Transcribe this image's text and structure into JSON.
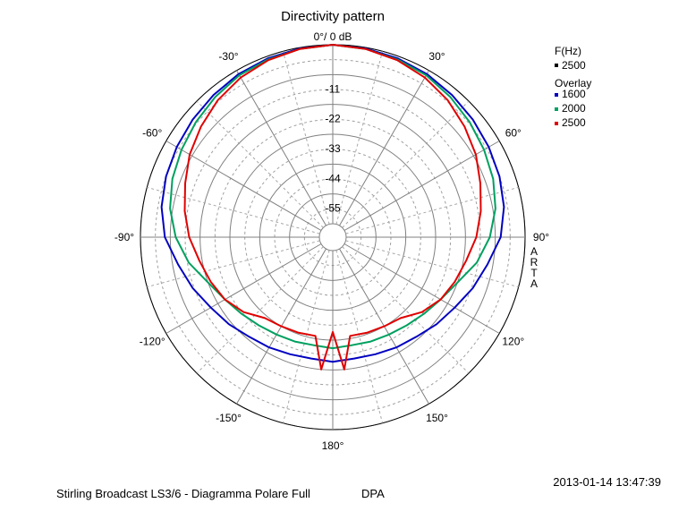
{
  "chart_data": {
    "type": "polar-line",
    "title": "Directivity pattern",
    "top_label": "0°/ 0 dB",
    "radial_unit": "dB",
    "radial_ticks": [
      {
        "value": 0,
        "label": ""
      },
      {
        "value": -11,
        "label": "-11"
      },
      {
        "value": -22,
        "label": "-22"
      },
      {
        "value": -33,
        "label": "-33"
      },
      {
        "value": -44,
        "label": "-44"
      },
      {
        "value": -55,
        "label": "-55"
      }
    ],
    "radial_range": [
      -66,
      0
    ],
    "angle_labels": [
      {
        "angle": 30,
        "label": "30°"
      },
      {
        "angle": 60,
        "label": "60°"
      },
      {
        "angle": 90,
        "label": "90°"
      },
      {
        "angle": 120,
        "label": "120°"
      },
      {
        "angle": 150,
        "label": "150°"
      },
      {
        "angle": 180,
        "label": "180°"
      },
      {
        "angle": -150,
        "label": "-150°"
      },
      {
        "angle": -120,
        "label": "-120°"
      },
      {
        "angle": -90,
        "label": "-90°"
      },
      {
        "angle": -60,
        "label": "-60°"
      },
      {
        "angle": -30,
        "label": "-30°"
      }
    ],
    "legend": {
      "header1": "F(Hz)",
      "main_entry": {
        "name": "2500",
        "color": "#000000"
      },
      "header2": "Overlay",
      "entries": [
        {
          "name": "1600",
          "color": "#0000c0"
        },
        {
          "name": "2000",
          "color": "#00a060"
        },
        {
          "name": "2500",
          "color": "#e00000"
        }
      ]
    },
    "series": [
      {
        "name": "1600",
        "color": "#0000c0",
        "angles": [
          0,
          10,
          20,
          30,
          40,
          50,
          60,
          70,
          80,
          90,
          100,
          110,
          120,
          130,
          140,
          150,
          160,
          170,
          180,
          -170,
          -160,
          -150,
          -140,
          -130,
          -120,
          -110,
          -100,
          -90,
          -80,
          -70,
          -60,
          -50,
          -40,
          -30,
          -20,
          -10
        ],
        "values": [
          0,
          -0.3,
          -0.8,
          -1.5,
          -2.5,
          -3.5,
          -4.5,
          -5.5,
          -6.8,
          -9,
          -13,
          -16,
          -19,
          -21,
          -23,
          -24,
          -25,
          -25.5,
          -25,
          -25.5,
          -25,
          -24,
          -23,
          -21,
          -19,
          -16,
          -13,
          -9,
          -6.8,
          -5.5,
          -4.5,
          -3.5,
          -2.5,
          -1.5,
          -0.8,
          -0.3
        ]
      },
      {
        "name": "2000",
        "color": "#00a060",
        "angles": [
          0,
          10,
          20,
          30,
          40,
          50,
          60,
          70,
          80,
          90,
          100,
          110,
          120,
          130,
          140,
          150,
          160,
          170,
          180,
          -170,
          -160,
          -150,
          -140,
          -130,
          -120,
          -110,
          -100,
          -90,
          -80,
          -70,
          -60,
          -50,
          -40,
          -30,
          -20,
          -10
        ],
        "values": [
          0,
          -0.5,
          -1.2,
          -2,
          -3.5,
          -5,
          -6.5,
          -8,
          -10,
          -13,
          -17,
          -22,
          -25,
          -27,
          -28.5,
          -29.5,
          -30,
          -30.5,
          -30,
          -30.5,
          -30,
          -29.5,
          -28.5,
          -27,
          -25,
          -22,
          -17,
          -13,
          -10,
          -8,
          -6.5,
          -5,
          -3.5,
          -2,
          -1.2,
          -0.5
        ]
      },
      {
        "name": "2500",
        "color": "#e00000",
        "angles": [
          0,
          10,
          20,
          30,
          40,
          50,
          60,
          70,
          80,
          90,
          100,
          110,
          120,
          130,
          140,
          150,
          160,
          170,
          175,
          180,
          -175,
          -170,
          -160,
          -150,
          -140,
          -130,
          -120,
          -110,
          -100,
          -90,
          -80,
          -70,
          -60,
          -50,
          -40,
          -30,
          -20,
          -10
        ],
        "values": [
          0,
          -0.5,
          -1.5,
          -3,
          -5,
          -7.5,
          -10,
          -13,
          -15.5,
          -18,
          -21,
          -23,
          -25,
          -28,
          -32,
          -33,
          -33.5,
          -34,
          -22,
          -36,
          -22,
          -34,
          -33.5,
          -33,
          -32,
          -28,
          -25,
          -23,
          -21,
          -18,
          -15.5,
          -13,
          -10,
          -7.5,
          -5,
          -3,
          -1.5,
          -0.5
        ]
      }
    ]
  },
  "side_label": "ARTA",
  "footer": {
    "timestamp": "2013-01-14  13:47:39",
    "caption": "Stirling Broadcast LS3/6 - Diagramma Polare Full",
    "tag": "DPA"
  }
}
